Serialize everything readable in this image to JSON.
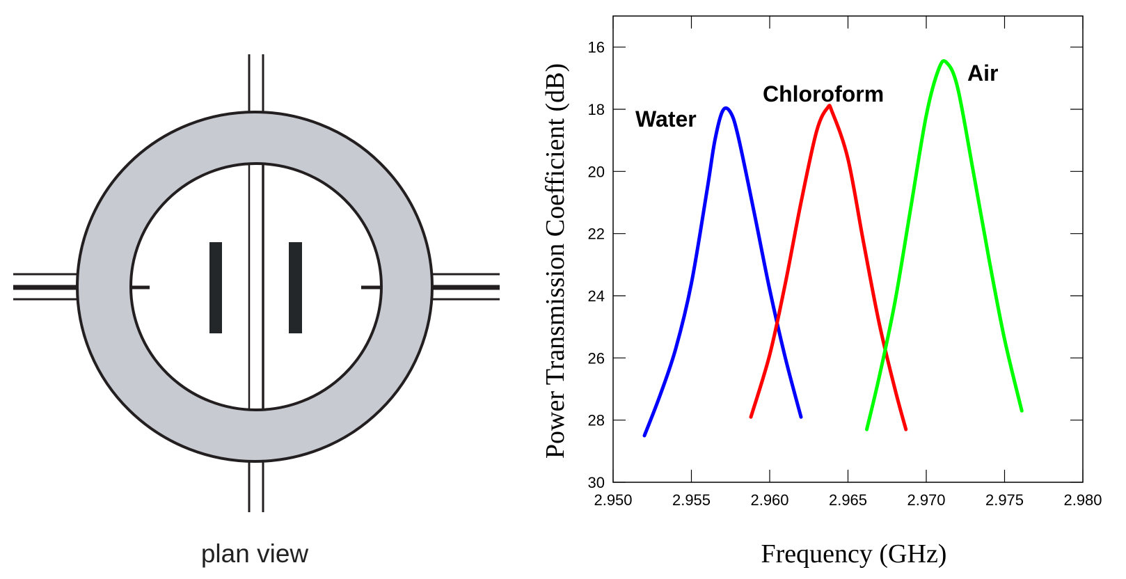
{
  "diagram": {
    "caption": "plan view",
    "colors": {
      "ring": "#c7cad1",
      "line": "#231f20",
      "electrode": "#23272a"
    }
  },
  "chart_data": {
    "type": "line",
    "title": "",
    "xlabel": "Frequency (GHz)",
    "ylabel": "Power Transmission Coefficient (dB)",
    "xlim": [
      2.95,
      2.98
    ],
    "ylim": [
      15,
      30
    ],
    "y_inverted": true,
    "grid": false,
    "legend": "none (inline labels near peaks)",
    "x_ticks": [
      "2.950",
      "2.955",
      "2.960",
      "2.965",
      "2.970",
      "2.975",
      "2.980"
    ],
    "y_ticks": [
      "16",
      "18",
      "20",
      "22",
      "24",
      "26",
      "28",
      "30"
    ],
    "series": [
      {
        "name": "Water",
        "color": "#0000ff",
        "x": [
          2.952,
          2.953,
          2.954,
          2.955,
          2.956,
          2.9565,
          2.957,
          2.9575,
          2.958,
          2.959,
          2.96,
          2.961,
          2.962
        ],
        "y": [
          28.5,
          27.2,
          25.7,
          23.6,
          20.6,
          19.0,
          18.05,
          18.1,
          18.9,
          21.3,
          23.8,
          26.0,
          27.9
        ]
      },
      {
        "name": "Chloroform",
        "color": "#ff0000",
        "x": [
          2.9588,
          2.96,
          2.961,
          2.962,
          2.963,
          2.9637,
          2.964,
          2.965,
          2.966,
          2.967,
          2.968,
          2.9687
        ],
        "y": [
          27.9,
          25.9,
          23.6,
          21.0,
          18.7,
          17.95,
          18.1,
          19.6,
          22.3,
          24.9,
          27.0,
          28.3
        ]
      },
      {
        "name": "Air",
        "color": "#00ff00",
        "x": [
          2.9662,
          2.967,
          2.968,
          2.969,
          2.97,
          2.9708,
          2.9713,
          2.972,
          2.973,
          2.974,
          2.975,
          2.9761
        ],
        "y": [
          28.3,
          26.6,
          24.2,
          21.2,
          18.2,
          16.7,
          16.5,
          17.3,
          20.0,
          22.8,
          25.4,
          27.7
        ]
      }
    ]
  }
}
